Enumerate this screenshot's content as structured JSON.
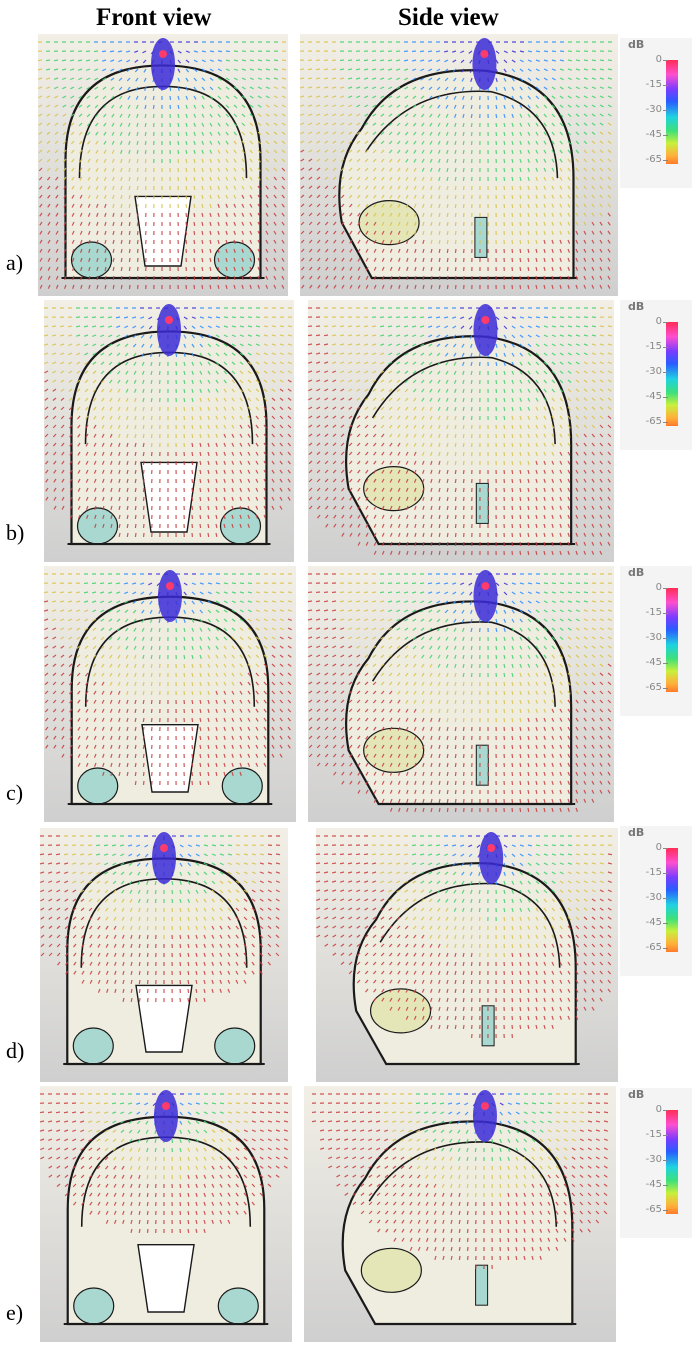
{
  "headers": {
    "front": "Front view",
    "side": "Side view"
  },
  "rows": [
    {
      "label": "a)"
    },
    {
      "label": "b)"
    },
    {
      "label": "c)"
    },
    {
      "label": "d)"
    },
    {
      "label": "e)"
    }
  ],
  "scale": {
    "unit": "dB",
    "ticks": [
      "0",
      "-15",
      "-30",
      "-45",
      "-65"
    ]
  },
  "colors": {
    "field_max": "#3b2bd6",
    "field_high": "#2a8cff",
    "field_mid": "#3fd06a",
    "field_low": "#d9c24a",
    "field_min": "#c83a3a",
    "outline": "#1a1a1a",
    "tissue_light": "#efece0",
    "tissue_teal": "#a8d8d0",
    "tissue_yellow": "#e4e6b8"
  }
}
